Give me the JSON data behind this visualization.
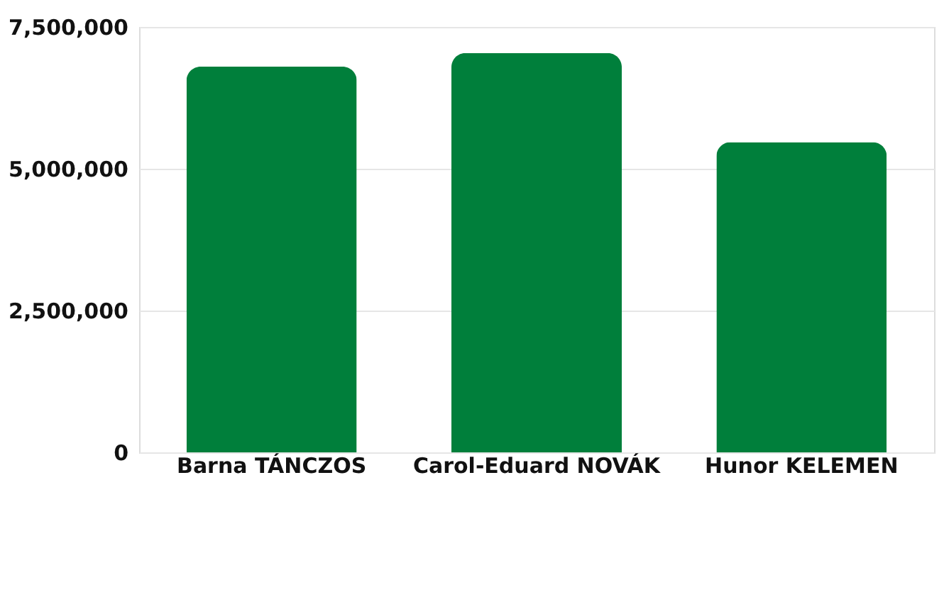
{
  "chart_data": {
    "type": "bar",
    "categories": [
      "Barna TÁNCZOS",
      "Carol-Eduard NOVÁK",
      "Hunor KELEMEN"
    ],
    "values": [
      6800000,
      7040000,
      5470000
    ],
    "color": "#007f3b",
    "ylim": [
      0,
      7500000
    ],
    "yticks": [
      {
        "value": 0,
        "label": "0"
      },
      {
        "value": 2500000,
        "label": "2,500,000"
      },
      {
        "value": 5000000,
        "label": "5,000,000"
      },
      {
        "value": 7500000,
        "label": "7,500,000"
      }
    ],
    "grid": "y"
  }
}
